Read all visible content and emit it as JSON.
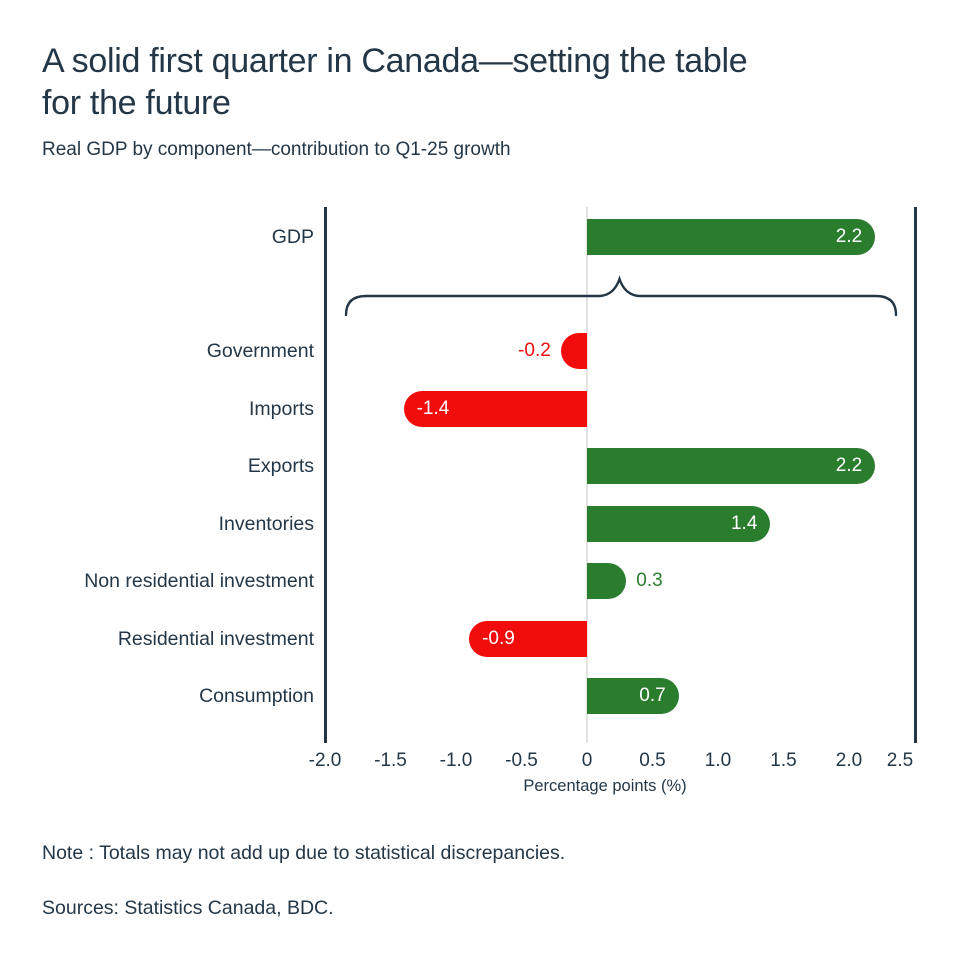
{
  "header": {
    "title_lines": [
      "A solid first quarter in Canada—setting the table",
      "for the future"
    ],
    "subtitle": "Real GDP by component—contribution to Q1-25 growth"
  },
  "chart_data": {
    "type": "bar",
    "orientation": "horizontal",
    "title": "A solid first quarter in Canada—setting the table for the future",
    "subtitle": "Real GDP by component—contribution to Q1-25 growth",
    "categories": [
      "GDP",
      "Government",
      "Imports",
      "Exports",
      "Inventories",
      "Non residential investment",
      "Residential investment",
      "Consumption"
    ],
    "values": [
      2.2,
      -0.2,
      -1.4,
      2.2,
      1.4,
      0.3,
      -0.9,
      0.7
    ],
    "value_labels": [
      "2.2",
      "-0.2",
      "-1.4",
      "2.2",
      "1.4",
      "0.3",
      "-0.9",
      "0.7"
    ],
    "xlabel": "Percentage points (%)",
    "xticks": [
      -2.0,
      -1.5,
      -1.0,
      -0.5,
      0,
      0.5,
      1.0,
      1.5,
      2.0,
      2.5
    ],
    "xtick_labels": [
      "-2.0",
      "-1.5",
      "-1.0",
      "-0.5",
      "0",
      "0.5",
      "1.0",
      "1.5",
      "2.0",
      "2.5"
    ],
    "xlim": [
      -2.0,
      2.5
    ],
    "grid": false,
    "legend": "none",
    "annotations": [
      {
        "type": "brace",
        "from_x": -1.84,
        "to_x": 2.36,
        "position": "between GDP bar and component bars",
        "orientation": "pointing-up"
      }
    ],
    "colors": {
      "positive": "#2b7d2e",
      "negative": "#f20d0d",
      "axis": "#233747",
      "zero_line": "#e4e4e0",
      "label_inside": "#ffffff"
    }
  },
  "footer": {
    "note": "Note : Totals may not add up due to statistical discrepancies.",
    "sources": "Sources: Statistics Canada, BDC."
  }
}
